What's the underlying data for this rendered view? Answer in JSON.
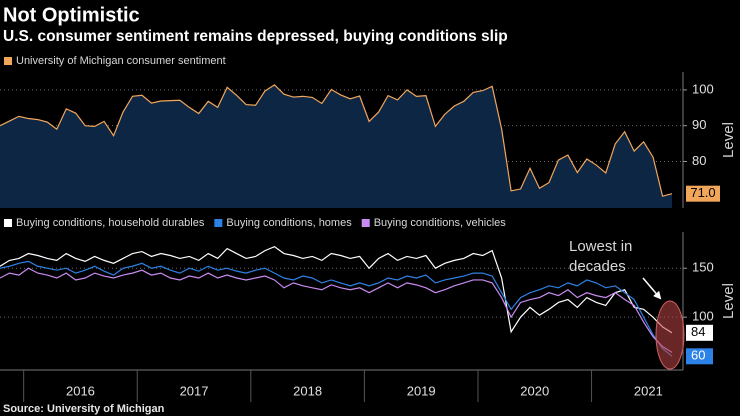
{
  "title": "Not Optimistic",
  "subtitle": "U.S. consumer sentiment remains depressed, buying conditions slip",
  "source": "Source: University of Michigan",
  "chart_data": [
    {
      "type": "area",
      "ylabel": "Level",
      "ylim": [
        67,
        105
      ],
      "yticks": [
        80,
        90,
        100
      ],
      "grid": true,
      "legend": "top-left",
      "end_label": "71.0",
      "series": [
        {
          "name": "University of Michigan consumer sentiment",
          "color": "#f2a65a",
          "fill": "#0d2644",
          "values": [
            90.0,
            91.3,
            92.6,
            92.0,
            91.7,
            91.0,
            89.0,
            94.7,
            93.5,
            90.0,
            89.8,
            91.2,
            87.2,
            93.8,
            98.2,
            98.5,
            96.3,
            96.9,
            97.0,
            97.1,
            95.1,
            93.4,
            96.8,
            95.1,
            100.7,
            98.5,
            95.9,
            95.7,
            99.7,
            101.4,
            98.8,
            98.0,
            98.2,
            97.9,
            96.2,
            100.1,
            98.6,
            97.5,
            98.3,
            91.2,
            93.8,
            98.4,
            97.2,
            100.0,
            98.2,
            98.4,
            89.8,
            93.2,
            95.5,
            96.8,
            99.3,
            99.8,
            101.0,
            89.1,
            71.8,
            72.3,
            78.1,
            72.5,
            74.1,
            80.4,
            81.8,
            76.9,
            80.7,
            79.0,
            76.8,
            84.9,
            88.3,
            82.9,
            85.5,
            81.2,
            70.3,
            71.0
          ]
        }
      ]
    },
    {
      "type": "line",
      "ylabel": "Level",
      "ylim": [
        46,
        187
      ],
      "yticks": [
        100,
        150
      ],
      "grid": true,
      "legend": "top-left",
      "annotation": [
        "Lowest in",
        "decades"
      ],
      "categories": [
        null,
        null,
        null,
        null,
        null,
        null,
        null,
        null,
        null,
        "2016",
        null,
        null,
        null,
        null,
        null,
        null,
        null,
        null,
        null,
        null,
        null,
        "2017",
        null,
        null,
        null,
        null,
        null,
        null,
        null,
        null,
        null,
        null,
        null,
        "2018",
        null,
        null,
        null,
        null,
        null,
        null,
        null,
        null,
        null,
        null,
        null,
        "2019",
        null,
        null,
        null,
        null,
        null,
        null,
        null,
        null,
        null,
        null,
        null,
        "2020",
        null,
        null,
        null,
        null,
        null,
        null,
        null,
        null,
        null,
        null,
        null,
        "2021",
        null,
        null
      ],
      "series": [
        {
          "name": "Buying conditions, household durables",
          "color": "#ffffff",
          "values": [
            152,
            158,
            160,
            165,
            163,
            160,
            158,
            165,
            160,
            157,
            162,
            158,
            155,
            160,
            165,
            167,
            162,
            165,
            163,
            160,
            162,
            158,
            165,
            160,
            170,
            165,
            160,
            162,
            168,
            172,
            165,
            163,
            160,
            162,
            158,
            165,
            163,
            160,
            162,
            150,
            160,
            165,
            158,
            162,
            160,
            163,
            150,
            155,
            158,
            160,
            165,
            163,
            168,
            140,
            85,
            100,
            110,
            102,
            108,
            115,
            118,
            110,
            120,
            115,
            112,
            125,
            128,
            110,
            108,
            100,
            90,
            84
          ]
        },
        {
          "name": "Buying conditions, homes",
          "color": "#2c82e6",
          "values": [
            150,
            152,
            155,
            157,
            152,
            150,
            148,
            150,
            145,
            148,
            152,
            147,
            143,
            150,
            152,
            155,
            150,
            152,
            148,
            145,
            150,
            147,
            152,
            148,
            150,
            147,
            145,
            148,
            150,
            145,
            140,
            138,
            142,
            140,
            135,
            138,
            135,
            132,
            135,
            132,
            135,
            140,
            138,
            142,
            140,
            143,
            135,
            138,
            140,
            142,
            145,
            145,
            142,
            125,
            108,
            120,
            125,
            128,
            132,
            130,
            135,
            132,
            138,
            135,
            130,
            132,
            125,
            118,
            100,
            82,
            68,
            60
          ]
        },
        {
          "name": "Buying conditions, vehicles",
          "color": "#c98bf0",
          "values": [
            140,
            145,
            143,
            150,
            145,
            143,
            140,
            145,
            138,
            140,
            145,
            142,
            140,
            143,
            145,
            148,
            143,
            145,
            140,
            138,
            142,
            140,
            145,
            140,
            143,
            140,
            138,
            140,
            142,
            138,
            130,
            135,
            132,
            130,
            128,
            133,
            130,
            128,
            130,
            125,
            130,
            135,
            130,
            135,
            133,
            130,
            125,
            128,
            132,
            135,
            138,
            138,
            135,
            120,
            100,
            115,
            118,
            120,
            125,
            122,
            128,
            120,
            125,
            122,
            120,
            125,
            118,
            112,
            95,
            80,
            70,
            64
          ]
        }
      ]
    }
  ]
}
